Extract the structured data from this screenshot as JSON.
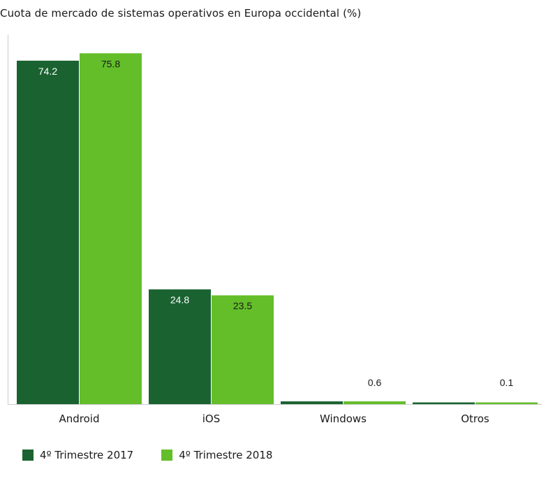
{
  "chart_data": {
    "type": "bar",
    "title": "Cuota de mercado de sistemas operativos en Europa occidental (%)",
    "categories": [
      "Android",
      "iOS",
      "Windows",
      "Otros"
    ],
    "series": [
      {
        "name": "4º Trimestre 2017",
        "color": "#1a6331",
        "values": [
          74.2,
          24.8,
          0.6,
          0.3
        ]
      },
      {
        "name": "4º Trimestre 2018",
        "color": "#63be2a",
        "values": [
          75.8,
          23.5,
          0.6,
          0.1
        ]
      }
    ],
    "data_labels": [
      [
        "74.2",
        "24.8",
        "",
        ""
      ],
      [
        "75.8",
        "23.5",
        "0.6",
        "0.1"
      ]
    ],
    "xlabel": "",
    "ylabel": "",
    "ylim": [
      0,
      76
    ],
    "grid": false,
    "legend_position": "bottom-left"
  }
}
